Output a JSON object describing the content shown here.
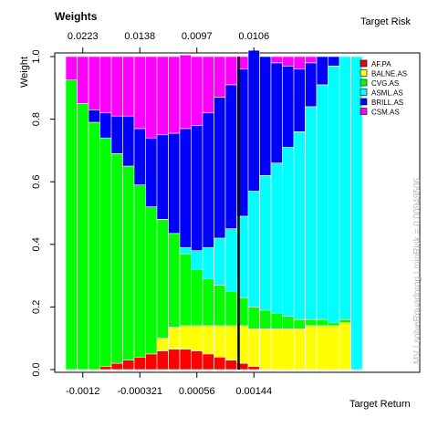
{
  "chart_data": {
    "type": "bar",
    "stacked": true,
    "title": "Weights",
    "top_axis_label": "Target Risk",
    "top_tick_labels": [
      "0.0223",
      "0.0138",
      "0.0097",
      "0.0106"
    ],
    "xlabel": "Target Return",
    "x_tick_labels": [
      "-0.0012",
      "-0.000321",
      "0.00056",
      "0.00144"
    ],
    "ylabel": "Weight",
    "ylim": [
      0,
      1
    ],
    "y_ticks": [
      "0.0",
      "0.2",
      "0.4",
      "0.6",
      "0.8",
      "1.0"
    ],
    "side_text": "MV | solveRquadprog | minRisk = 0.00949506",
    "highlight_bar": 15,
    "legend_position": "top-right",
    "series": [
      {
        "name": "AF.PA",
        "color": "#FF0000",
        "values": [
          0,
          0,
          0,
          0.01,
          0.02,
          0.03,
          0.04,
          0.05,
          0.06,
          0.065,
          0.065,
          0.06,
          0.05,
          0.04,
          0.03,
          0.02,
          0.01,
          0,
          0,
          0,
          0,
          0,
          0,
          0,
          0,
          0
        ]
      },
      {
        "name": "BALNE.AS",
        "color": "#FFFF00",
        "values": [
          0,
          0,
          0,
          0,
          0,
          0,
          0,
          0,
          0.04,
          0.07,
          0.075,
          0.08,
          0.09,
          0.1,
          0.11,
          0.12,
          0.12,
          0.13,
          0.13,
          0.13,
          0.13,
          0.14,
          0.14,
          0.14,
          0.15,
          0
        ]
      },
      {
        "name": "CVG.AS",
        "color": "#00FF00",
        "values": [
          0.925,
          0.85,
          0.79,
          0.73,
          0.67,
          0.62,
          0.55,
          0.47,
          0.38,
          0.3,
          0.23,
          0.18,
          0.15,
          0.13,
          0.11,
          0.09,
          0.07,
          0.06,
          0.05,
          0.04,
          0.03,
          0.02,
          0.02,
          0.01,
          0.01,
          0
        ]
      },
      {
        "name": "ASML.AS",
        "color": "#00FFFF",
        "values": [
          0,
          0,
          0,
          0,
          0,
          0,
          0,
          0,
          0,
          0,
          0.02,
          0.06,
          0.1,
          0.15,
          0.2,
          0.26,
          0.37,
          0.43,
          0.48,
          0.54,
          0.6,
          0.68,
          0.75,
          0.82,
          0.84,
          1.0
        ]
      },
      {
        "name": "BRILL.AS",
        "color": "#0000FF",
        "values": [
          0,
          0,
          0.04,
          0.08,
          0.12,
          0.16,
          0.18,
          0.22,
          0.27,
          0.32,
          0.38,
          0.4,
          0.43,
          0.45,
          0.46,
          0.47,
          0.45,
          0.38,
          0.32,
          0.26,
          0.2,
          0.14,
          0.09,
          0.03,
          0,
          0
        ]
      },
      {
        "name": "CSM.AS",
        "color": "#FF00FF",
        "values": [
          0.075,
          0.15,
          0.17,
          0.18,
          0.19,
          0.19,
          0.23,
          0.26,
          0.25,
          0.245,
          0.235,
          0.22,
          0.18,
          0.13,
          0.09,
          0.04,
          0,
          0,
          0.02,
          0.03,
          0.04,
          0.02,
          0,
          0,
          0,
          0
        ]
      }
    ]
  }
}
